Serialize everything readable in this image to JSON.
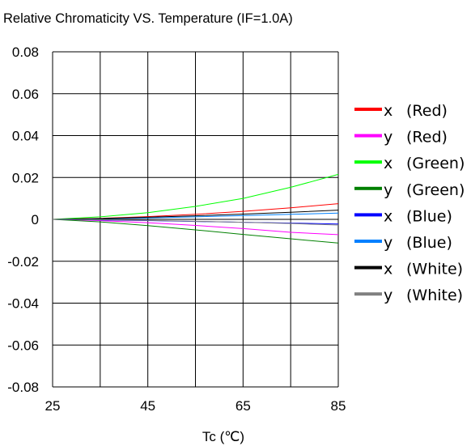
{
  "chart_data": {
    "type": "line",
    "title": "Relative Chromaticity VS. Temperature (IF=1.0A)",
    "xlabel": "Tc (℃)",
    "ylabel": "",
    "xlim": [
      25,
      85
    ],
    "ylim": [
      -0.08,
      0.08
    ],
    "x_ticks": [
      "25",
      "45",
      "65",
      "85"
    ],
    "y_ticks": [
      "0.08",
      "0.06",
      "0.04",
      "0.02",
      "0",
      "-0.02",
      "-0.04",
      "-0.06",
      "-0.08"
    ],
    "grid": true,
    "legend_position": "right",
    "x": [
      25,
      35,
      45,
      55,
      65,
      75,
      85
    ],
    "series": [
      {
        "name": "x (Red)",
        "color": "#ff0000",
        "values": [
          0,
          0.0005,
          0.0013,
          0.0024,
          0.0038,
          0.0055,
          0.0075
        ]
      },
      {
        "name": "y (Red)",
        "color": "#ff00ff",
        "values": [
          0,
          -0.0006,
          -0.0016,
          -0.0029,
          -0.0044,
          -0.0062,
          -0.0073
        ]
      },
      {
        "name": "x (Green)",
        "color": "#00ff00",
        "values": [
          0,
          0.0012,
          0.0032,
          0.0062,
          0.01,
          0.0153,
          0.0215
        ]
      },
      {
        "name": "y (Green)",
        "color": "#008000",
        "values": [
          0,
          -0.0012,
          -0.003,
          -0.005,
          -0.0072,
          -0.0093,
          -0.0113
        ]
      },
      {
        "name": "x (Blue)",
        "color": "#0000ff",
        "values": [
          0,
          -0.0003,
          -0.0006,
          -0.001,
          -0.0014,
          -0.0018,
          -0.0022
        ]
      },
      {
        "name": "y (Blue)",
        "color": "#0080ff",
        "values": [
          0,
          0.0003,
          0.0007,
          0.0012,
          0.0018,
          0.0024,
          0.003
        ]
      },
      {
        "name": "x (White)",
        "color": "#000000",
        "values": [
          0,
          0.0004,
          0.001,
          0.0017,
          0.0025,
          0.0034,
          0.0044
        ]
      },
      {
        "name": "y (White)",
        "color": "#808080",
        "values": [
          0,
          -0.0002,
          -0.0005,
          -0.0009,
          -0.0014,
          -0.002,
          -0.0027
        ]
      }
    ],
    "legend_items": [
      {
        "axis": "x",
        "label": "(Red)",
        "color": "#ff0000"
      },
      {
        "axis": "y",
        "label": "(Red)",
        "color": "#ff00ff"
      },
      {
        "axis": "x",
        "label": "(Green)",
        "color": "#00ff00"
      },
      {
        "axis": "y",
        "label": "(Green)",
        "color": "#008000"
      },
      {
        "axis": "x",
        "label": "(Blue)",
        "color": "#0000ff"
      },
      {
        "axis": "y",
        "label": "(Blue)",
        "color": "#0080ff"
      },
      {
        "axis": "x",
        "label": "(White)",
        "color": "#000000"
      },
      {
        "axis": "y",
        "label": "(White)",
        "color": "#808080"
      }
    ]
  }
}
